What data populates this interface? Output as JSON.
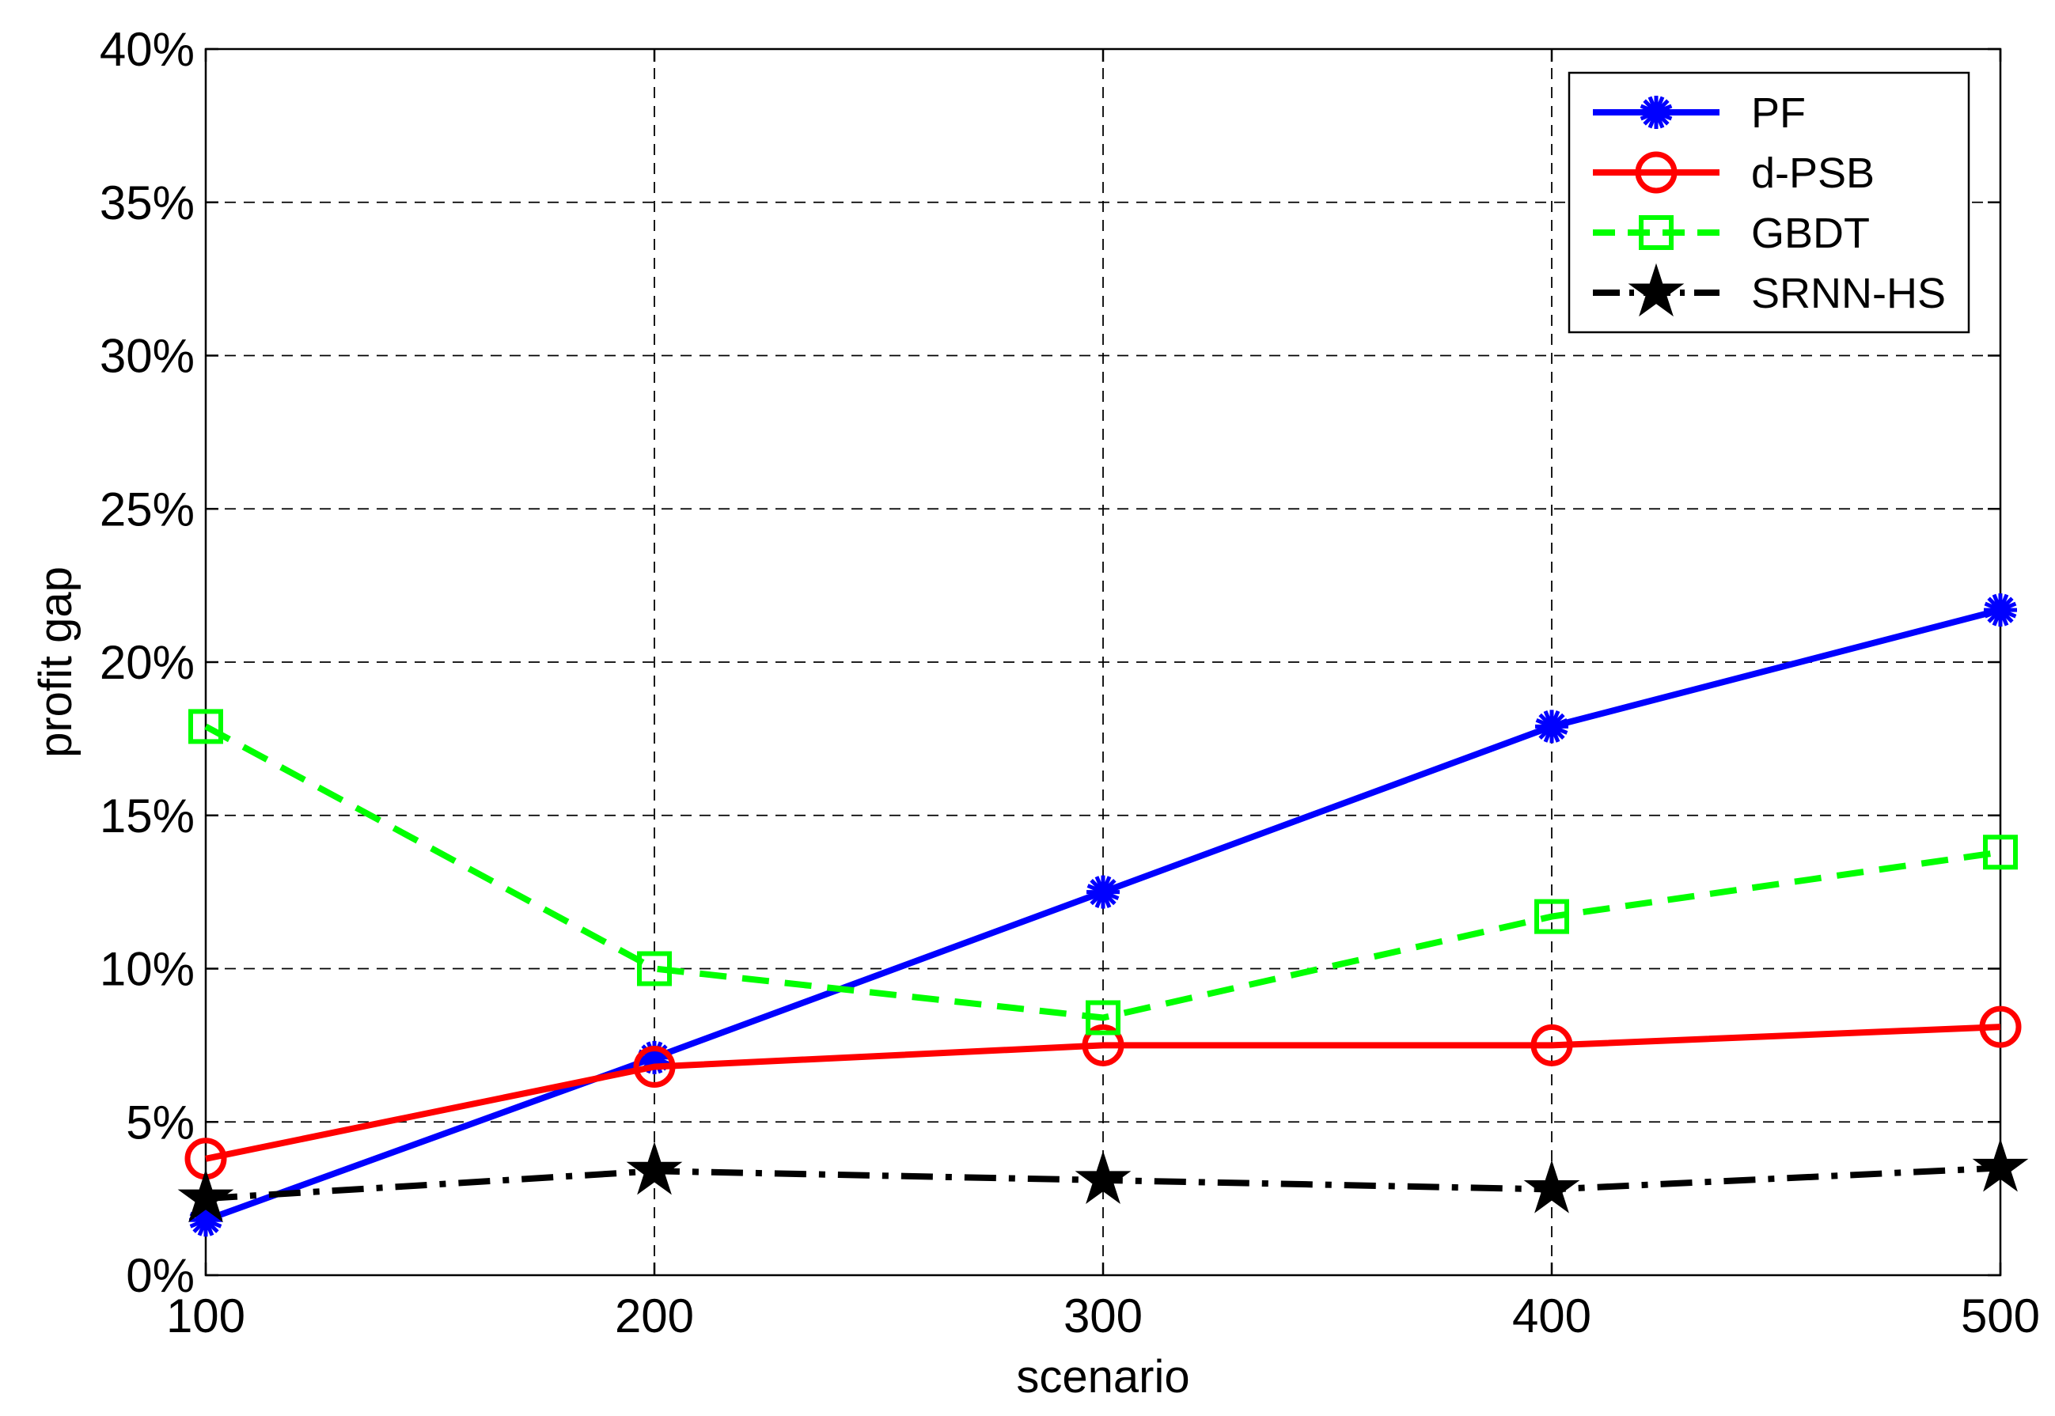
{
  "chart_data": {
    "type": "line",
    "title": "",
    "xlabel": "scenario",
    "ylabel": "profit gap",
    "xlim": [
      100,
      500
    ],
    "ylim": [
      0,
      40
    ],
    "x": [
      100,
      200,
      300,
      400,
      500
    ],
    "x_ticks": [
      {
        "value": 100,
        "label": "100"
      },
      {
        "value": 200,
        "label": "200"
      },
      {
        "value": 300,
        "label": "300"
      },
      {
        "value": 400,
        "label": "400"
      },
      {
        "value": 500,
        "label": "500"
      }
    ],
    "y_ticks": [
      {
        "value": 0,
        "label": "0%"
      },
      {
        "value": 5,
        "label": "5%"
      },
      {
        "value": 10,
        "label": "10%"
      },
      {
        "value": 15,
        "label": "15%"
      },
      {
        "value": 20,
        "label": "20%"
      },
      {
        "value": 25,
        "label": "25%"
      },
      {
        "value": 30,
        "label": "30%"
      },
      {
        "value": 35,
        "label": "35%"
      },
      {
        "value": 40,
        "label": "40%"
      }
    ],
    "grid": true,
    "legend_position": "top-right",
    "series": [
      {
        "name": "PF",
        "values": [
          1.8,
          7.1,
          12.5,
          17.9,
          21.7
        ],
        "color": "#0000ff",
        "line_style": "solid",
        "marker": "asterisk"
      },
      {
        "name": "d-PSB",
        "values": [
          3.8,
          6.8,
          7.5,
          7.5,
          8.1
        ],
        "color": "#ff0000",
        "line_style": "solid",
        "marker": "circle"
      },
      {
        "name": "GBDT",
        "values": [
          17.9,
          10.0,
          8.4,
          11.7,
          13.8
        ],
        "color": "#00ff00",
        "line_style": "dashed",
        "marker": "square"
      },
      {
        "name": "SRNN-HS",
        "values": [
          2.5,
          3.4,
          3.1,
          2.8,
          3.5
        ],
        "color": "#000000",
        "line_style": "dashdot",
        "marker": "star"
      }
    ]
  }
}
